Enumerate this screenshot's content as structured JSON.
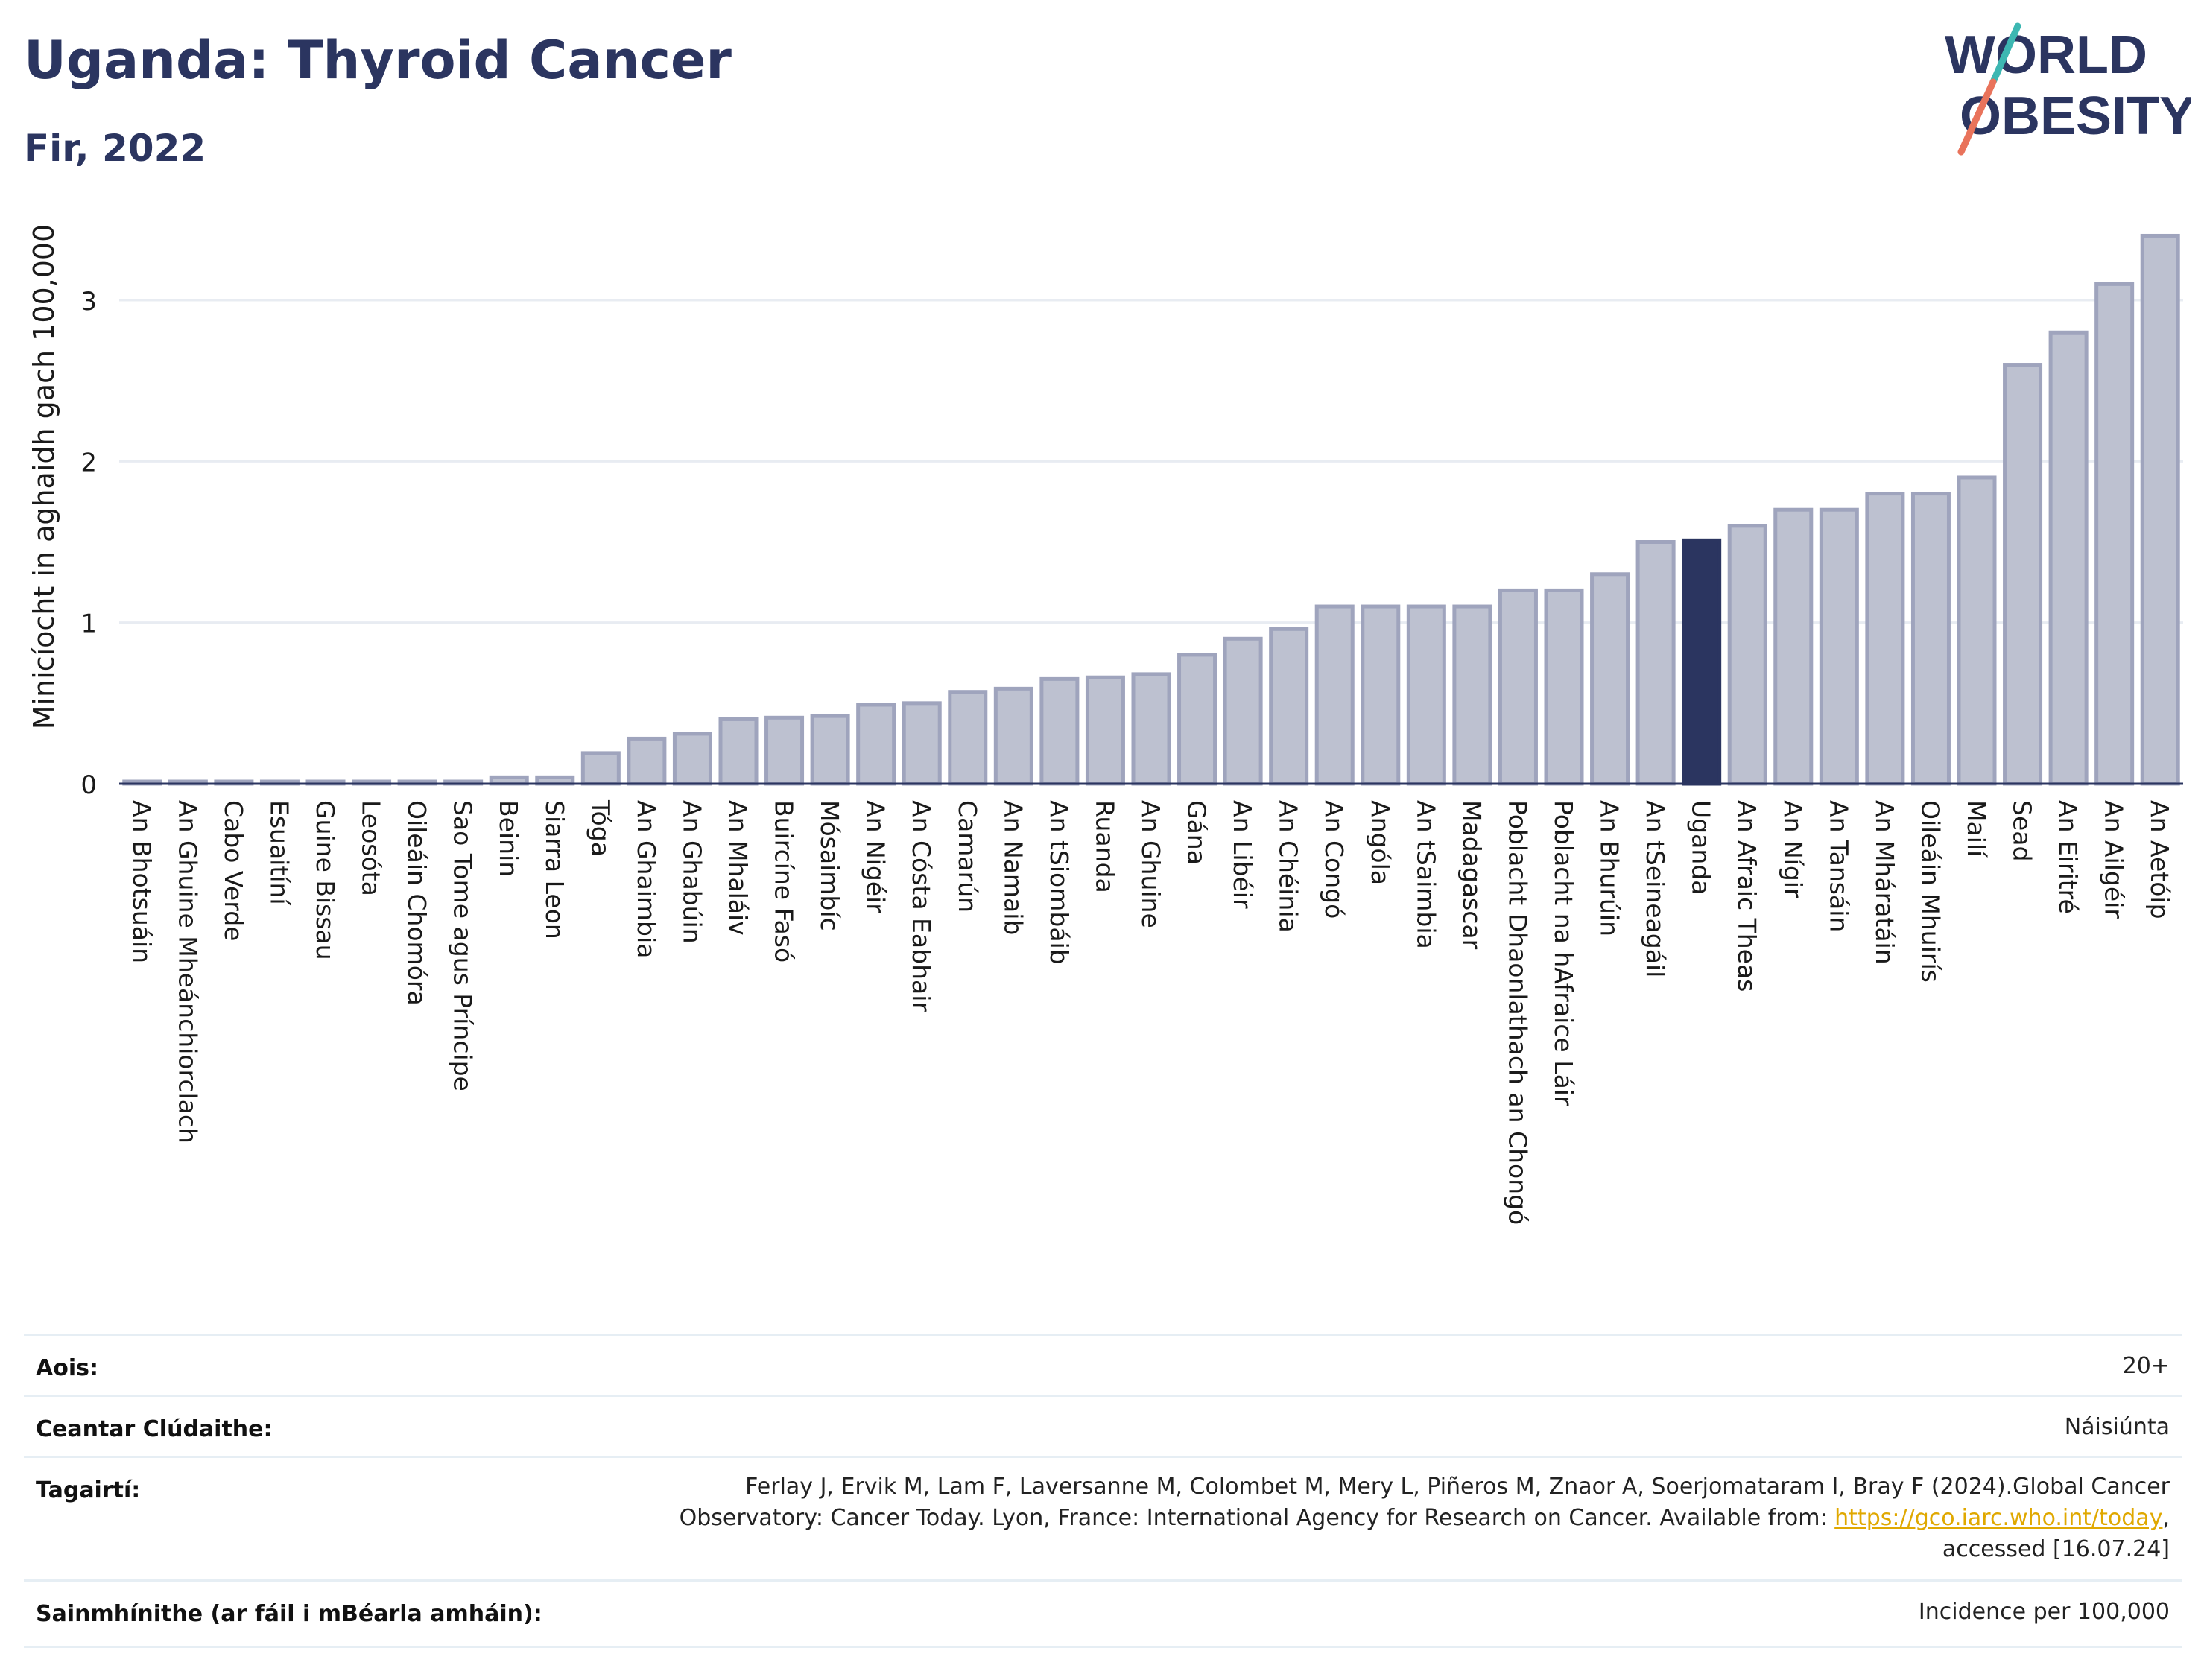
{
  "header": {
    "title": "Uganda: Thyroid Cancer",
    "subtitle": "Fir, 2022"
  },
  "logo": {
    "line1": "WORLD",
    "line2": "OBESITY",
    "text_color": "#2b3560",
    "slash_colors": [
      "#3db7b2",
      "#e9735b"
    ]
  },
  "colors": {
    "bar_default": "#bdc1d0",
    "bar_default_stroke": "#9fa4bd",
    "bar_highlight": "#2b3560",
    "gridline": "#e8ecf2",
    "baseline": "#2b3560"
  },
  "chart_data": {
    "type": "bar",
    "title": "Uganda: Thyroid Cancer",
    "subtitle": "Fir, 2022",
    "ylabel": "Minicíocht in aghaidh gach 100,000",
    "xlabel": "",
    "ylim": [
      0,
      3.5
    ],
    "yticks": [
      0,
      1,
      2,
      3
    ],
    "grid": true,
    "highlight": "Uganda",
    "categories": [
      "An Bhotsuáin",
      "An Ghuine Mheánchiorclach",
      "Cabo Verde",
      "Esuaitíní",
      "Guine Bissau",
      "Leosóta",
      "Oileáin Chomóra",
      "Sao Tome agus Príncipe",
      "Beinin",
      "Siarra Leon",
      "Tóga",
      "An Ghaimbia",
      "An Ghabúin",
      "An Mhaláiv",
      "Buircíne Fasó",
      "Mósaimbíc",
      "An Nigéir",
      "An Cósta Eabhair",
      "Camarún",
      "An Namaib",
      "An tSiombáib",
      "Ruanda",
      "An Ghuine",
      "Gána",
      "An Libéir",
      "An Chéinia",
      "An Congó",
      "Angóla",
      "An tSaimbia",
      "Madagascar",
      "Poblacht Dhaonlathach an Chongó",
      "Poblacht na hAfraice Láir",
      "An Bhurúin",
      "An tSeineagáil",
      "Uganda",
      "An Afraic Theas",
      "An Nígir",
      "An Tansáin",
      "An Mháratáin",
      "Oileáin Mhuirís",
      "Mailí",
      "Sead",
      "An Eiritré",
      "An Ailgéir",
      "An Aetóip"
    ],
    "values": [
      0.01,
      0.01,
      0.01,
      0.01,
      0.01,
      0.01,
      0.01,
      0.01,
      0.04,
      0.04,
      0.19,
      0.28,
      0.31,
      0.4,
      0.41,
      0.42,
      0.49,
      0.5,
      0.57,
      0.59,
      0.65,
      0.66,
      0.68,
      0.8,
      0.9,
      0.96,
      1.1,
      1.1,
      1.1,
      1.1,
      1.2,
      1.2,
      1.3,
      1.5,
      1.51,
      1.6,
      1.7,
      1.7,
      1.8,
      1.8,
      1.9,
      2.6,
      2.8,
      3.1,
      3.4
    ]
  },
  "info": {
    "rows": [
      {
        "label": "Aois:",
        "value": "20+"
      },
      {
        "label": "Ceantar Clúdaithe:",
        "value": "Náisiúnta"
      },
      {
        "label": "Tagairtí:",
        "value_line1": "Ferlay J, Ervik M, Lam F, Laversanne M, Colombet M, Mery L, Piñeros M, Znaor A, Soerjomataram I, Bray F (2024).Global Cancer",
        "value_line2_pre": "Observatory: Cancer Today. Lyon, France: International Agency for Research on Cancer. Available from: ",
        "value_link": "https://gco.iarc.who.int/today",
        "value_line2_post": ",",
        "value_line3": "accessed [16.07.24]"
      },
      {
        "label": "Sainmhínithe (ar fáil i mBéarla amháin):",
        "value": "Incidence per 100,000"
      }
    ]
  }
}
